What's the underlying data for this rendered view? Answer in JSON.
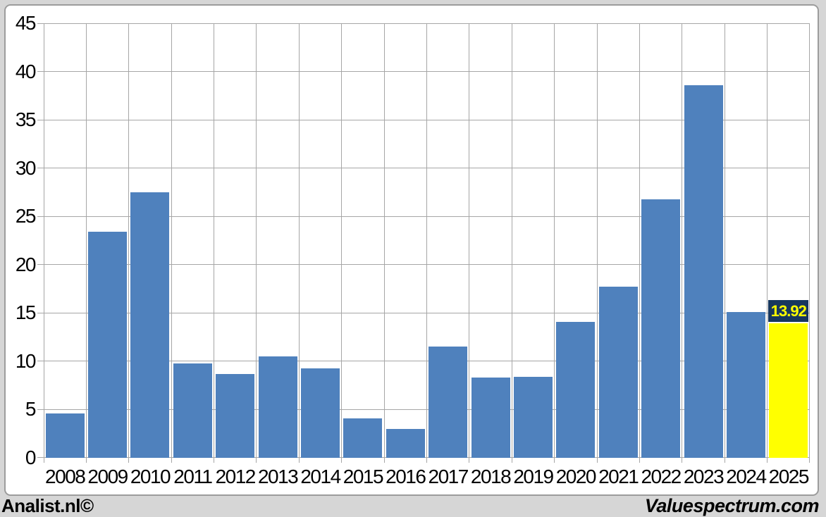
{
  "footer": {
    "left": "Analist.nl©",
    "right": "Valuespectrum.com"
  },
  "colors": {
    "page_background": "#d6d6d6",
    "panel_background": "#ffffff",
    "panel_border": "#9c9c9c",
    "gridline": "#a6a6a6",
    "bar": "#4f81bd",
    "highlight_bar": "#ffff00",
    "flag_background": "#17375e",
    "flag_text": "#ffff00",
    "axis_text": "#000000"
  },
  "chart_data": {
    "type": "bar",
    "title": "",
    "xlabel": "",
    "ylabel": "",
    "categories": [
      "2008",
      "2009",
      "2010",
      "2011",
      "2012",
      "2013",
      "2014",
      "2015",
      "2016",
      "2017",
      "2018",
      "2019",
      "2020",
      "2021",
      "2022",
      "2023",
      "2024",
      "2025"
    ],
    "values": [
      4.6,
      23.4,
      27.5,
      9.8,
      8.7,
      10.5,
      9.3,
      4.1,
      3.0,
      11.5,
      8.3,
      8.4,
      14.1,
      17.7,
      26.8,
      38.6,
      15.1,
      13.92
    ],
    "ylim": [
      0,
      45
    ],
    "yticks": [
      0,
      5,
      10,
      15,
      20,
      25,
      30,
      35,
      40,
      45
    ],
    "grid": "both",
    "legend": "none",
    "bar_color": "#4f81bd",
    "highlight": {
      "category": "2025",
      "value": 13.92,
      "label": "13.92",
      "bar_color": "#ffff00",
      "flag_background": "#17375e",
      "flag_text_color": "#ffff00"
    }
  }
}
